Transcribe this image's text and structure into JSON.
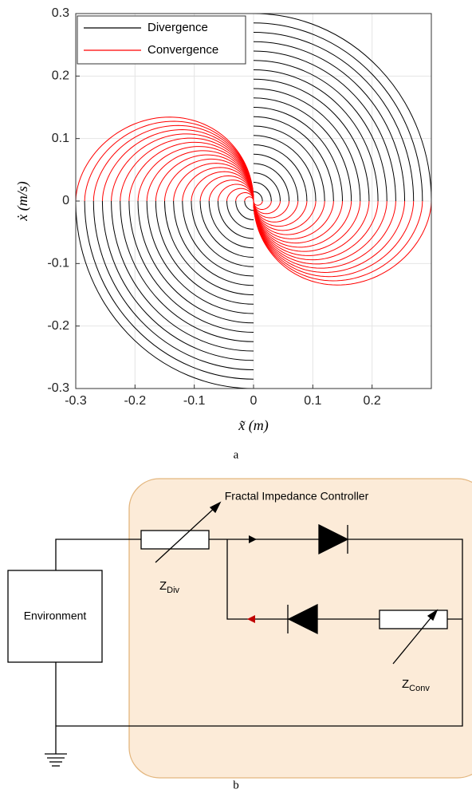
{
  "chart_data": {
    "type": "phase",
    "xlabel": "x̃ (m)",
    "ylabel": "ẋ (m/s)",
    "xlim": [
      -0.3,
      0.3
    ],
    "ylim": [
      -0.3,
      0.3
    ],
    "xticks": [
      -0.3,
      -0.2,
      -0.1,
      0,
      0.1,
      0.2
    ],
    "yticks": [
      -0.3,
      -0.2,
      -0.1,
      0,
      0.1,
      0.2,
      0.3
    ],
    "grid": true,
    "legend": "upper left",
    "series": [
      {
        "name": "Divergence",
        "color": "#000000",
        "radii": [
          0.015,
          0.03,
          0.045,
          0.06,
          0.075,
          0.09,
          0.105,
          0.12,
          0.135,
          0.15,
          0.165,
          0.18,
          0.195,
          0.21,
          0.225,
          0.24,
          0.255,
          0.27,
          0.285,
          0.3
        ]
      },
      {
        "name": "Convergence",
        "color": "#ff0000",
        "radii": [
          0.015,
          0.03,
          0.045,
          0.06,
          0.075,
          0.09,
          0.105,
          0.12,
          0.135,
          0.15,
          0.165,
          0.18,
          0.195,
          0.21,
          0.225,
          0.24,
          0.255,
          0.27,
          0.285,
          0.3
        ]
      }
    ],
    "caption": "a"
  },
  "diagram": {
    "title": "Fractal Impedance Controller",
    "environment": "Environment",
    "z_div": {
      "symbol": "Z",
      "subscript": "Div"
    },
    "z_conv": {
      "symbol": "Z",
      "subscript": "Conv"
    },
    "caption": "b"
  }
}
